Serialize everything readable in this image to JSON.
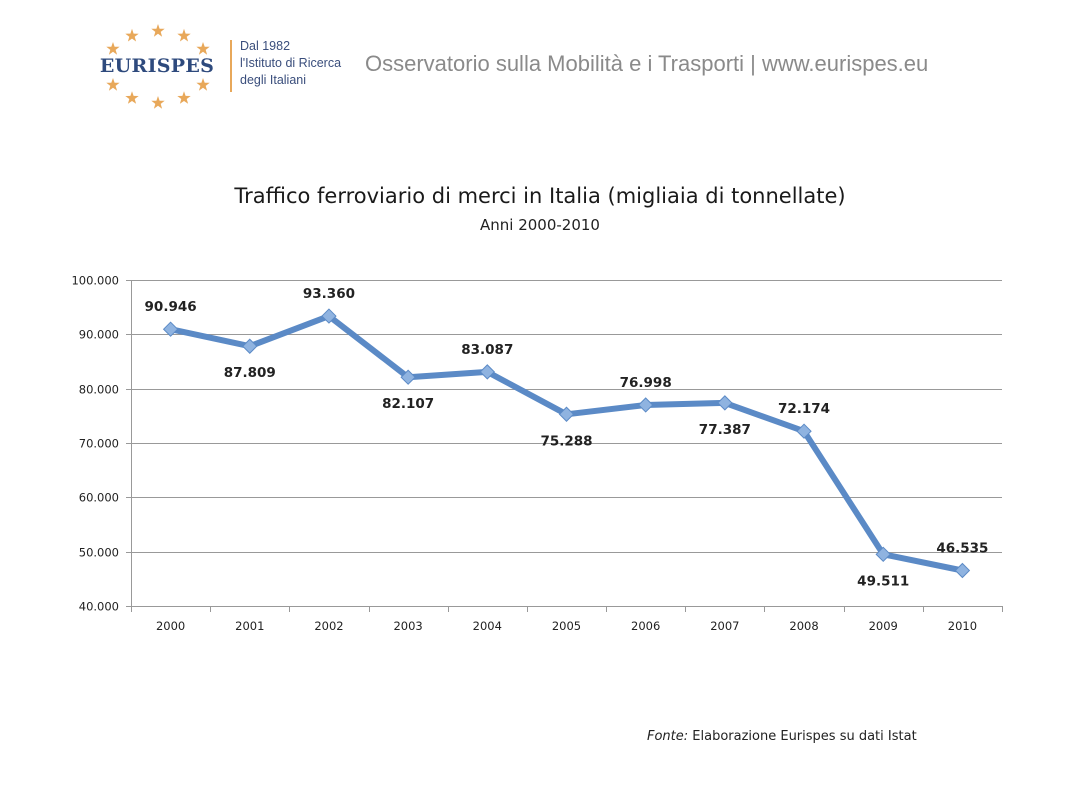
{
  "header": {
    "logo_text": "EURISPES",
    "tagline": [
      "Dal 1982",
      "l'Istituto di Ricerca",
      "degli Italiani"
    ],
    "observatory": "Osservatorio sulla Mobilità e i Trasporti | www.eurispes.eu"
  },
  "colors": {
    "line": "#5b8ac6",
    "marker": "#8fb3e0",
    "grid": "#999999",
    "logo_blue": "#2e4a7d",
    "logo_orange": "#e8a85a"
  },
  "chart_data": {
    "type": "line",
    "title": "Traffico ferroviario di merci in Italia (migliaia di tonnellate)",
    "subtitle": "Anni 2000-2010",
    "xlabel": "",
    "ylabel": "",
    "categories": [
      "2000",
      "2001",
      "2002",
      "2003",
      "2004",
      "2005",
      "2006",
      "2007",
      "2008",
      "2009",
      "2010"
    ],
    "series": [
      {
        "name": "Traffico ferroviario di merci",
        "values": [
          90946,
          87809,
          93360,
          82107,
          83087,
          75288,
          76998,
          77387,
          72174,
          49511,
          46535
        ],
        "labels": [
          "90.946",
          "87.809",
          "93.360",
          "82.107",
          "83.087",
          "75.288",
          "76.998",
          "77.387",
          "72.174",
          "49.511",
          "46.535"
        ],
        "label_positions": [
          "above",
          "below",
          "above",
          "below",
          "above",
          "below",
          "above",
          "below",
          "above",
          "below",
          "above"
        ]
      }
    ],
    "ylim": [
      40000,
      100000
    ],
    "yticks": [
      40000,
      50000,
      60000,
      70000,
      80000,
      90000,
      100000
    ],
    "ytick_labels": [
      "40.000",
      "50.000",
      "60.000",
      "70.000",
      "80.000",
      "90.000",
      "100.000"
    ],
    "grid": true,
    "legend": "none"
  },
  "footer": {
    "source_label": "Fonte:",
    "source_text": " Elaborazione Eurispes su dati Istat"
  }
}
